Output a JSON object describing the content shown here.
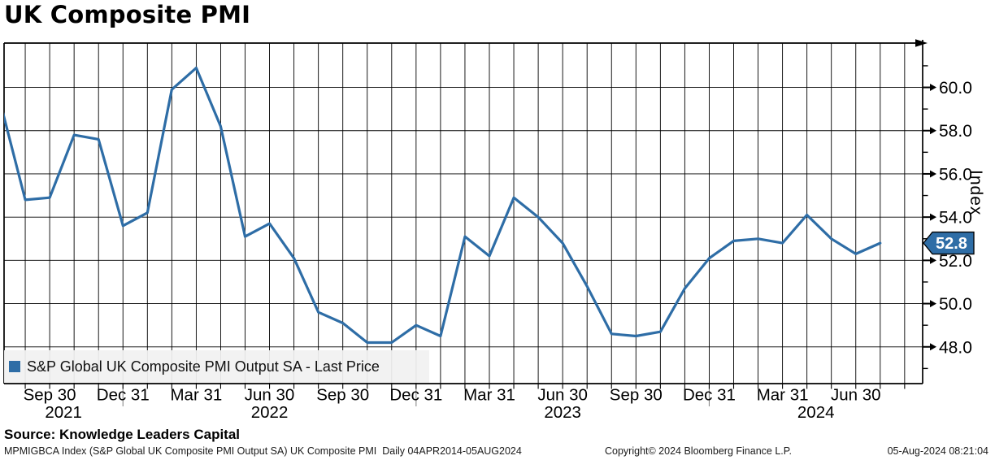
{
  "page": {
    "title": "UK Composite PMI"
  },
  "source_line": "Source: Knowledge Leaders Capital",
  "footer": {
    "left": "MPMIGBCA Index (S&P Global UK Composite PMI Output SA) UK Composite PMI  Daily 04APR2014-05AUG2024",
    "copyright": "Copyright© 2024 Bloomberg Finance L.P.",
    "timestamp": "05-Aug-2024 08:21:04"
  },
  "legend": {
    "label": "S&P Global UK Composite PMI Output SA - Last Price",
    "marker_color": "#2e6da6"
  },
  "y_axis": {
    "title": "Index"
  },
  "last_price_tag": {
    "value": "52.8",
    "bg_color": "#2e6da6",
    "text_color": "#ffffff"
  },
  "colors": {
    "line": "#2e6da6",
    "grid": "#000000",
    "axis": "#000000",
    "year_separator": "#8a8a8a"
  },
  "chart_data": {
    "type": "line",
    "title": "UK Composite PMI",
    "xlabel": "",
    "ylabel": "Index",
    "ylim": [
      46.3,
      62.05
    ],
    "grid": "monthly vertical lines, horizontal lines every 2.0",
    "legend_position": "bottom-left",
    "x_months": [
      "Jul 2021",
      "Aug 2021",
      "Sep 2021",
      "Oct 2021",
      "Nov 2021",
      "Dec 2021",
      "Jan 2022",
      "Feb 2022",
      "Mar 2022",
      "Apr 2022",
      "May 2022",
      "Jun 2022",
      "Jul 2022",
      "Aug 2022",
      "Sep 2022",
      "Oct 2022",
      "Nov 2022",
      "Dec 2022",
      "Jan 2023",
      "Feb 2023",
      "Mar 2023",
      "Apr 2023",
      "May 2023",
      "Jun 2023",
      "Jul 2023",
      "Aug 2023",
      "Sep 2023",
      "Oct 2023",
      "Nov 2023",
      "Dec 2023",
      "Jan 2024",
      "Feb 2024",
      "Mar 2024",
      "Apr 2024",
      "May 2024",
      "Jun 2024",
      "Jul 2024"
    ],
    "series": [
      {
        "name": "S&P Global UK Composite PMI Output SA - Last Price",
        "color": "#2e6da6",
        "values": [
          59.2,
          54.8,
          54.9,
          57.8,
          57.6,
          53.6,
          54.2,
          59.9,
          60.9,
          58.2,
          53.1,
          53.7,
          52.1,
          49.6,
          49.1,
          48.2,
          48.2,
          49.0,
          48.5,
          53.1,
          52.2,
          54.9,
          54.0,
          52.8,
          50.8,
          48.6,
          48.5,
          48.7,
          50.7,
          52.1,
          52.9,
          53.0,
          52.8,
          54.1,
          53.0,
          52.3,
          52.8
        ]
      }
    ],
    "last_price": 52.8,
    "y_ticks_major": [
      48,
      50,
      52,
      54,
      56,
      58,
      60
    ],
    "y_tick_labels": [
      "48.0",
      "50.0",
      "52.0",
      "54.0",
      "56.0",
      "58.0",
      "60.0"
    ],
    "y_minor_tick_step": 1,
    "x_ticks": [
      {
        "month_index": 2,
        "label": "Sep 30"
      },
      {
        "month_index": 5,
        "label": "Dec 31"
      },
      {
        "month_index": 8,
        "label": "Mar 31"
      },
      {
        "month_index": 11,
        "label": "Jun 30"
      },
      {
        "month_index": 14,
        "label": "Sep 30"
      },
      {
        "month_index": 17,
        "label": "Dec 31"
      },
      {
        "month_index": 20,
        "label": "Mar 31"
      },
      {
        "month_index": 23,
        "label": "Jun 30"
      },
      {
        "month_index": 26,
        "label": "Sep 30"
      },
      {
        "month_index": 29,
        "label": "Dec 31"
      },
      {
        "month_index": 32,
        "label": "Mar 31"
      },
      {
        "month_index": 35,
        "label": "Jun 30"
      }
    ],
    "year_labels": [
      "2021",
      "2022",
      "2023",
      "2024"
    ],
    "year_separator_month_indices": [
      5,
      17,
      29
    ]
  }
}
